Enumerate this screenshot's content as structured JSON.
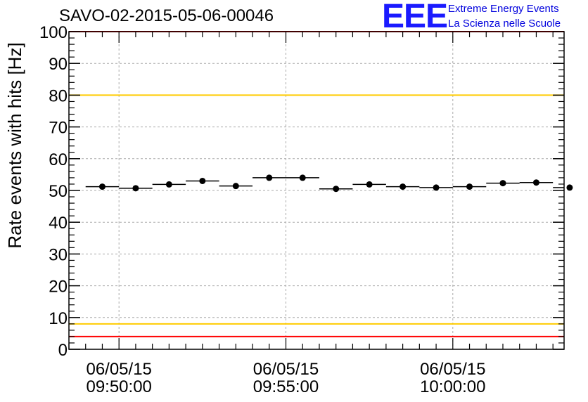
{
  "title": "SAVO-02-2015-05-06-00046",
  "logo": {
    "mark": "EEE",
    "line1": "Extreme Energy Events",
    "line2": "La Scienza nelle Scuole",
    "color": "#1a1aff"
  },
  "chart_data": {
    "type": "scatter",
    "title": "SAVO-02-2015-05-06-00046",
    "ylabel": "Rate events with hits [Hz]",
    "xlabel": "",
    "ylim": [
      0,
      100
    ],
    "yticks": [
      0,
      10,
      20,
      30,
      40,
      50,
      60,
      70,
      80,
      90,
      100
    ],
    "xlim": [
      "06/05/15 09:48:30",
      "06/05/15 10:03:20"
    ],
    "xticks": [
      {
        "date": "06/05/15",
        "time": "09:50:00"
      },
      {
        "date": "06/05/15",
        "time": "09:55:00"
      },
      {
        "date": "06/05/15",
        "time": "10:00:00"
      }
    ],
    "grid": true,
    "bin_width": "1 min",
    "points": [
      {
        "x": "09:49:30",
        "y": 51.2
      },
      {
        "x": "09:50:30",
        "y": 50.7
      },
      {
        "x": "09:51:30",
        "y": 51.9
      },
      {
        "x": "09:52:30",
        "y": 53.0
      },
      {
        "x": "09:53:30",
        "y": 51.4
      },
      {
        "x": "09:54:30",
        "y": 54.0
      },
      {
        "x": "09:55:30",
        "y": 54.0
      },
      {
        "x": "09:56:30",
        "y": 50.5
      },
      {
        "x": "09:57:30",
        "y": 51.9
      },
      {
        "x": "09:58:30",
        "y": 51.2
      },
      {
        "x": "09:59:30",
        "y": 50.9
      },
      {
        "x": "10:00:30",
        "y": 51.2
      },
      {
        "x": "10:01:30",
        "y": 52.3
      },
      {
        "x": "10:02:30",
        "y": 52.5
      },
      {
        "x": "10:03:30",
        "y": 50.9
      }
    ],
    "reference_lines": [
      {
        "y": 100,
        "color": "#ff0000"
      },
      {
        "y": 80,
        "color": "#ffcc00"
      },
      {
        "y": 8,
        "color": "#ffcc00"
      },
      {
        "y": 4,
        "color": "#ff0000"
      }
    ]
  }
}
